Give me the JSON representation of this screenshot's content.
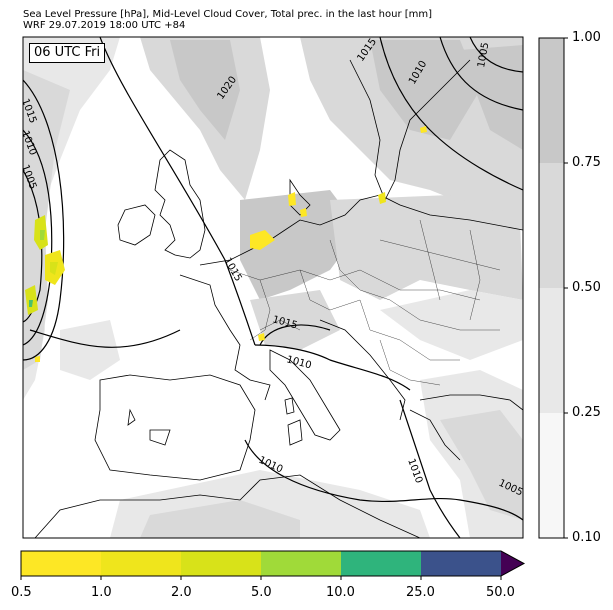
{
  "title": {
    "line1": "Sea Level Pressure [hPa], Mid-Level Cloud Cover, Total prec. in the last hour [mm]",
    "line2": "WRF 29.07.2019 18:00 UTC +84"
  },
  "time_label": "06 UTC Fri",
  "isobar_labels": [
    "1015",
    "1010",
    "1005",
    "1020",
    "1015",
    "1010",
    "1005",
    "1015",
    "1015",
    "1010",
    "1010",
    "1010",
    "1005"
  ],
  "cloud_colorbar": {
    "ticks": [
      "0.10",
      "0.25",
      "0.50",
      "0.75",
      "1.00"
    ],
    "colors": [
      "#f7f7f7",
      "#e8e8e8",
      "#d9d9d9",
      "#c8c8c8"
    ]
  },
  "precip_colorbar": {
    "ticks": [
      "0.5",
      "1.0",
      "2.0",
      "5.0",
      "10.0",
      "25.0",
      "50.0"
    ],
    "colors": [
      "#fde725",
      "#efe51c",
      "#d8e219",
      "#a0da39",
      "#4ac16d",
      "#2fb47c",
      "#3b528b",
      "#440154"
    ]
  }
}
